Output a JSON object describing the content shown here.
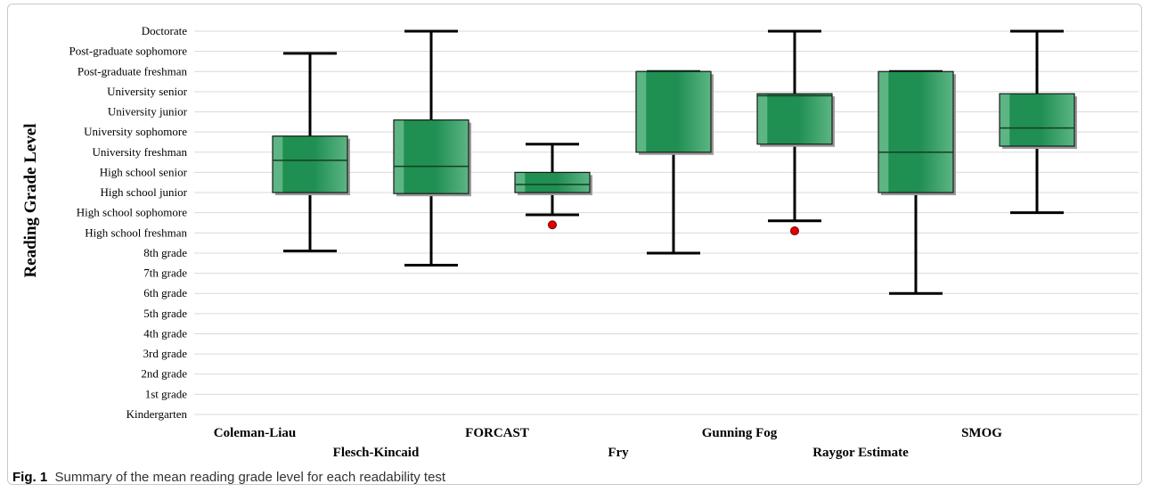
{
  "caption": {
    "label": "Fig. 1",
    "text": "Summary of the mean reading grade level for each readability test"
  },
  "colors": {
    "box_fill": "#1f8f52",
    "box_light": "#5cb583",
    "outlier": "#e00000",
    "grid": "#d9d9d9"
  },
  "chart_data": {
    "type": "box",
    "title": "",
    "ylabel": "Reading Grade Level",
    "xlabel": "",
    "ylim": [
      0,
      19
    ],
    "grid": true,
    "y_tick_labels": [
      "Kindergarten",
      "1st grade",
      "2nd grade",
      "3rd grade",
      "4th grade",
      "5th grade",
      "6th grade",
      "7th grade",
      "8th grade",
      "High school freshman",
      "High school sophomore",
      "High school junior",
      "High school senior",
      "University freshman",
      "University sophomore",
      "University junior",
      "University senior",
      "Post-graduate freshman",
      "Post-graduate sophomore",
      "Doctorate"
    ],
    "categories": [
      "Coleman-Liau",
      "Flesch-Kincaid",
      "FORCAST",
      "Fry",
      "Gunning Fog",
      "Raygor Estimate",
      "SMOG"
    ],
    "boxes": [
      {
        "name": "Coleman-Liau",
        "whisker_low": 8.1,
        "q1": 11.0,
        "median": 12.6,
        "q3": 13.8,
        "whisker_high": 17.9,
        "outliers": []
      },
      {
        "name": "Flesch-Kincaid",
        "whisker_low": 7.4,
        "q1": 10.95,
        "median": 12.3,
        "q3": 14.6,
        "whisker_high": 19.0,
        "outliers": []
      },
      {
        "name": "FORCAST",
        "whisker_low": 9.9,
        "q1": 11.0,
        "median": 11.4,
        "q3": 12.0,
        "whisker_high": 13.4,
        "outliers": [
          9.4
        ]
      },
      {
        "name": "Fry",
        "whisker_low": 8.0,
        "q1": 13.0,
        "median": 17.0,
        "q3": 17.0,
        "whisker_high": 17.0,
        "outliers": []
      },
      {
        "name": "Gunning Fog",
        "whisker_low": 9.6,
        "q1": 13.4,
        "median": 15.8,
        "q3": 15.9,
        "whisker_high": 19.0,
        "outliers": [
          9.1
        ]
      },
      {
        "name": "Raygor Estimate",
        "whisker_low": 6.0,
        "q1": 11.0,
        "median": 13.0,
        "q3": 17.0,
        "whisker_high": 17.0,
        "outliers": []
      },
      {
        "name": "SMOG",
        "whisker_low": 10.0,
        "q1": 13.3,
        "median": 14.2,
        "q3": 15.9,
        "whisker_high": 19.0,
        "outliers": []
      }
    ]
  }
}
